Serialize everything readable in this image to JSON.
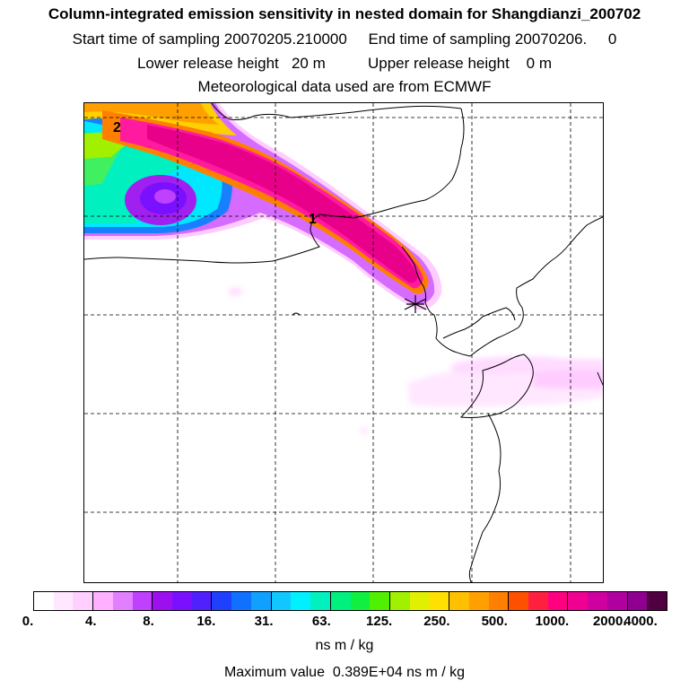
{
  "header": {
    "title": "Column-integrated emission sensitivity in nested domain for Shangdianzi_200702",
    "line2": "Start time of sampling 20070205.210000     End time of sampling 20070206.     0",
    "line3": "Lower release height   20 m          Upper release height    0 m",
    "line4": "Meteorological data used are from ECMWF"
  },
  "map": {
    "trajectory_labels": [
      "1",
      "2"
    ],
    "receptor_marker": "star-icon"
  },
  "colorbar": {
    "colors": [
      "#ffffff",
      "#ffe8ff",
      "#ffd0ff",
      "#ffb0ff",
      "#e080ff",
      "#c040ff",
      "#9c10f0",
      "#7a10ff",
      "#5020ff",
      "#2040ff",
      "#1070ff",
      "#10a0ff",
      "#10c8ff",
      "#00f0ff",
      "#00f0c0",
      "#00f080",
      "#10f040",
      "#50f000",
      "#a0f000",
      "#e0f000",
      "#ffe000",
      "#ffc000",
      "#ffa000",
      "#ff8000",
      "#ff5000",
      "#ff2040",
      "#ff0080",
      "#f00090",
      "#d000a0",
      "#b000a0",
      "#900090",
      "#500040"
    ],
    "tick_labels": [
      "0.",
      "4.",
      "8.",
      "16.",
      "31.",
      "63.",
      "125.",
      "250.",
      "500.",
      "1000.",
      "2000.",
      "4000."
    ],
    "unit": "ns m / kg"
  },
  "footer": {
    "maximum": "Maximum value  0.389E+04 ns m / kg"
  }
}
